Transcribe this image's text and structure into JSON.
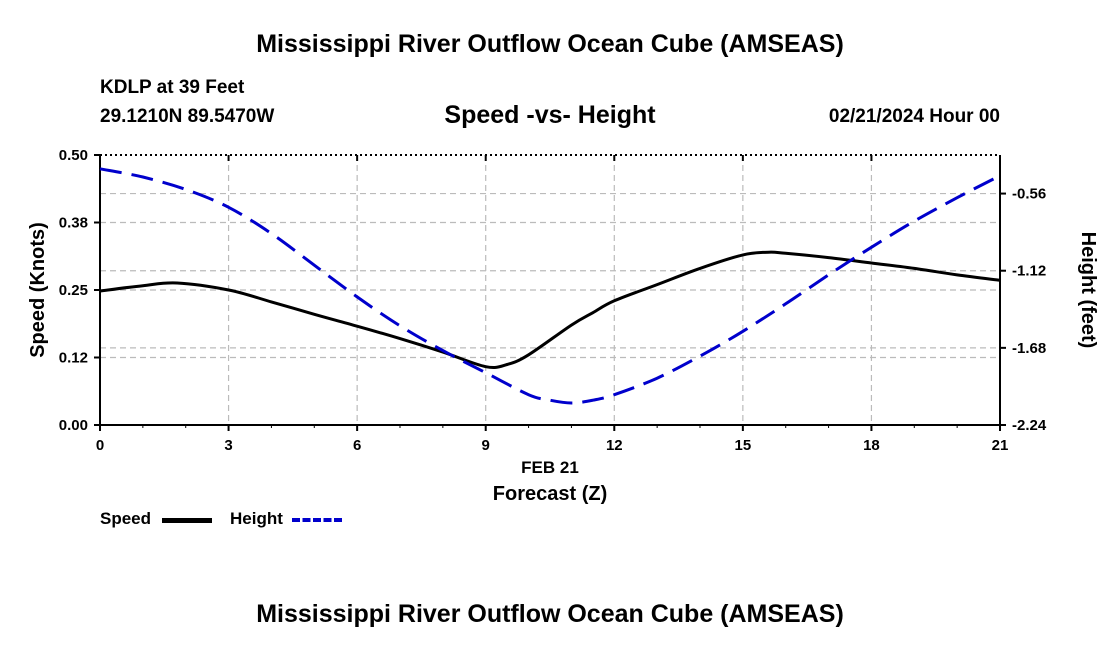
{
  "page": {
    "title": "Mississippi River Outflow Ocean Cube (AMSEAS)",
    "station": "KDLP at 39 Feet",
    "coords": "29.1210N  89.5470W",
    "subtitle": "Speed -vs- Height",
    "datetime": "02/21/2024 Hour 00",
    "footer_title": "Mississippi River Outflow Ocean Cube (AMSEAS)"
  },
  "legend": {
    "speed_label": "Speed",
    "height_label": "Height"
  },
  "colors": {
    "speed": "#000000",
    "height": "#0000cc",
    "grid": "#bbbbbb"
  },
  "chart_data": {
    "type": "line",
    "title": "Speed -vs- Height",
    "xlabel": "Forecast (Z)",
    "xlabel_date": "FEB 21",
    "ylabel": "Speed (Knots)",
    "ylabel_right": "Height (feet)",
    "xlim": [
      0,
      21
    ],
    "ylim": [
      0,
      0.5
    ],
    "ylim_right": [
      -2.24,
      -0.28
    ],
    "x_ticks": [
      0,
      3,
      6,
      9,
      12,
      15,
      18,
      21
    ],
    "x_tick_labels": [
      "0",
      "3",
      "6",
      "9",
      "12",
      "15",
      "18",
      "21"
    ],
    "y_ticks": [
      0,
      0.125,
      0.25,
      0.375,
      0.5
    ],
    "y_tick_labels": [
      "0.00",
      "0.12",
      "0.25",
      "0.38",
      "0.50"
    ],
    "y_right_ticks": [
      -2.24,
      -1.68,
      -1.12,
      -0.56
    ],
    "y_right_tick_labels": [
      "-2.24",
      "-1.68",
      "-1.12",
      "-0.56"
    ],
    "grid": true,
    "series": [
      {
        "name": "Speed",
        "axis": "left",
        "style": "solid",
        "x": [
          0,
          1,
          1.8,
          3,
          4,
          5,
          6,
          7,
          8,
          9,
          9.5,
          10,
          11,
          11.5,
          12,
          13,
          14,
          15,
          15.6,
          16,
          17,
          18,
          19,
          20,
          21
        ],
        "values": [
          0.248,
          0.258,
          0.263,
          0.25,
          0.228,
          0.205,
          0.183,
          0.16,
          0.135,
          0.108,
          0.112,
          0.13,
          0.185,
          0.208,
          0.23,
          0.26,
          0.29,
          0.315,
          0.32,
          0.318,
          0.31,
          0.3,
          0.29,
          0.278,
          0.268
        ]
      },
      {
        "name": "Height",
        "axis": "right",
        "style": "dashed",
        "x": [
          0,
          1,
          2,
          3,
          4,
          5,
          6,
          7,
          8,
          9,
          10,
          10.5,
          11,
          11.5,
          12,
          13,
          14,
          15,
          16,
          17,
          18,
          19,
          20,
          21
        ],
        "values": [
          -0.38,
          -0.44,
          -0.53,
          -0.66,
          -0.85,
          -1.08,
          -1.31,
          -1.52,
          -1.7,
          -1.86,
          -2.02,
          -2.06,
          -2.08,
          -2.06,
          -2.02,
          -1.9,
          -1.74,
          -1.56,
          -1.36,
          -1.15,
          -0.95,
          -0.76,
          -0.59,
          -0.43
        ]
      }
    ]
  }
}
